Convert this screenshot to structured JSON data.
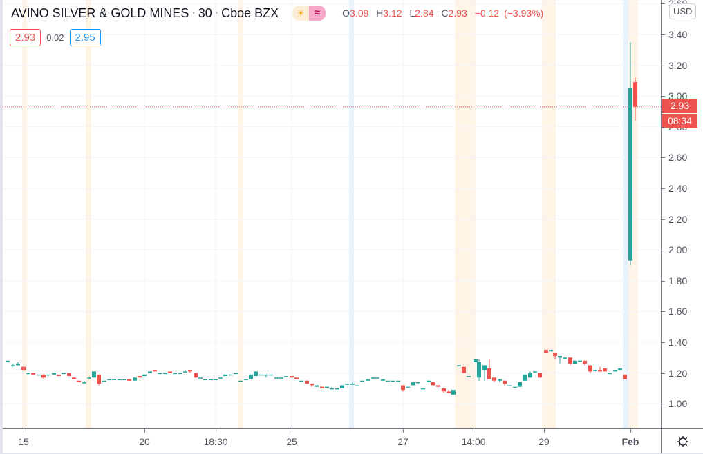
{
  "header": {
    "symbol_name": "AVINO SILVER & GOLD MINES",
    "interval": "30",
    "exchange": "Cboe BZX",
    "session_icons": [
      "sun-icon",
      "wave-icon"
    ],
    "ohlc": {
      "open_label": "O",
      "open": "3.09",
      "high_label": "H",
      "high": "3.12",
      "low_label": "L",
      "low": "2.84",
      "close_label": "C",
      "close": "2.93",
      "change": "−0.12",
      "change_pct": "(−3.93%)"
    },
    "bid": "2.93",
    "spread": "0.02",
    "ask": "2.95"
  },
  "price_axis": {
    "currency": "USD",
    "ticks": [
      "3.60",
      "3.40",
      "3.20",
      "3.00",
      "2.80",
      "2.60",
      "2.40",
      "2.20",
      "2.00",
      "1.80",
      "1.60",
      "1.40",
      "1.20",
      "1.00"
    ],
    "last_price_label": "2.93",
    "countdown_label": "08:34"
  },
  "time_axis": {
    "ticks": [
      {
        "label": "15",
        "x": 30,
        "bold": false
      },
      {
        "label": "20",
        "x": 205,
        "bold": false
      },
      {
        "label": "18:30",
        "x": 308,
        "bold": false
      },
      {
        "label": "25",
        "x": 418,
        "bold": false
      },
      {
        "label": "27",
        "x": 579,
        "bold": false
      },
      {
        "label": "14:00",
        "x": 681,
        "bold": false
      },
      {
        "label": "29",
        "x": 783,
        "bold": false
      },
      {
        "label": "Feb",
        "x": 908,
        "bold": true
      }
    ],
    "settings_icon": "gear-icon"
  },
  "colors": {
    "up": "#26a69a",
    "down": "#ef5350",
    "premarket_band": "#fff4e5",
    "postmarket_band": "#e8f2fd",
    "grid": "#f0f3fa"
  },
  "chart_data": {
    "type": "candlestick",
    "title": "AVINO SILVER & GOLD MINES · 30 · Cboe BZX",
    "xlabel": "",
    "ylabel": "USD",
    "ylim": [
      0.86,
      3.6
    ],
    "grid": true,
    "x_ticks": [
      "15",
      "20",
      "18:30",
      "25",
      "27",
      "14:00",
      "29",
      "Feb"
    ],
    "y_ticks": [
      1.0,
      1.2,
      1.4,
      1.6,
      1.8,
      2.0,
      2.2,
      2.4,
      2.6,
      2.8,
      3.0,
      3.2,
      3.4,
      3.6
    ],
    "last_price": 2.93,
    "last_candle": {
      "open": 3.09,
      "high": 3.12,
      "low": 2.84,
      "close": 2.93,
      "change": -0.12,
      "change_pct": -3.93
    },
    "candles": [
      {
        "x": 7,
        "o": 1.27,
        "h": 1.28,
        "l": 1.27,
        "c": 1.28
      },
      {
        "x": 15,
        "o": 1.25,
        "h": 1.26,
        "l": 1.24,
        "c": 1.25
      },
      {
        "x": 22,
        "o": 1.25,
        "h": 1.27,
        "l": 1.25,
        "c": 1.26
      },
      {
        "x": 30,
        "o": 1.24,
        "h": 1.24,
        "l": 1.22,
        "c": 1.22
      },
      {
        "x": 37,
        "o": 1.2,
        "h": 1.2,
        "l": 1.2,
        "c": 1.2
      },
      {
        "x": 44,
        "o": 1.2,
        "h": 1.2,
        "l": 1.19,
        "c": 1.19
      },
      {
        "x": 52,
        "o": 1.19,
        "h": 1.19,
        "l": 1.19,
        "c": 1.19
      },
      {
        "x": 59,
        "o": 1.19,
        "h": 1.19,
        "l": 1.16,
        "c": 1.17
      },
      {
        "x": 66,
        "o": 1.19,
        "h": 1.19,
        "l": 1.19,
        "c": 1.19
      },
      {
        "x": 74,
        "o": 1.19,
        "h": 1.2,
        "l": 1.19,
        "c": 1.2
      },
      {
        "x": 81,
        "o": 1.19,
        "h": 1.19,
        "l": 1.18,
        "c": 1.18
      },
      {
        "x": 88,
        "o": 1.2,
        "h": 1.2,
        "l": 1.2,
        "c": 1.2
      },
      {
        "x": 96,
        "o": 1.2,
        "h": 1.2,
        "l": 1.18,
        "c": 1.18
      },
      {
        "x": 103,
        "o": 1.17,
        "h": 1.17,
        "l": 1.16,
        "c": 1.16
      },
      {
        "x": 110,
        "o": 1.15,
        "h": 1.15,
        "l": 1.14,
        "c": 1.14
      },
      {
        "x": 118,
        "o": 1.14,
        "h": 1.15,
        "l": 1.13,
        "c": 1.14
      },
      {
        "x": 125,
        "o": 1.17,
        "h": 1.17,
        "l": 1.17,
        "c": 1.17
      },
      {
        "x": 132,
        "o": 1.17,
        "h": 1.21,
        "l": 1.17,
        "c": 1.21
      },
      {
        "x": 139,
        "o": 1.19,
        "h": 1.19,
        "l": 1.12,
        "c": 1.13
      },
      {
        "x": 147,
        "o": 1.15,
        "h": 1.15,
        "l": 1.15,
        "c": 1.15
      },
      {
        "x": 154,
        "o": 1.16,
        "h": 1.16,
        "l": 1.16,
        "c": 1.16
      },
      {
        "x": 161,
        "o": 1.16,
        "h": 1.16,
        "l": 1.16,
        "c": 1.16
      },
      {
        "x": 169,
        "o": 1.16,
        "h": 1.16,
        "l": 1.16,
        "c": 1.16
      },
      {
        "x": 176,
        "o": 1.16,
        "h": 1.16,
        "l": 1.16,
        "c": 1.16
      },
      {
        "x": 183,
        "o": 1.16,
        "h": 1.16,
        "l": 1.15,
        "c": 1.15
      },
      {
        "x": 191,
        "o": 1.15,
        "h": 1.17,
        "l": 1.15,
        "c": 1.17
      },
      {
        "x": 198,
        "o": 1.18,
        "h": 1.18,
        "l": 1.17,
        "c": 1.17
      },
      {
        "x": 205,
        "o": 1.18,
        "h": 1.19,
        "l": 1.18,
        "c": 1.19
      },
      {
        "x": 213,
        "o": 1.2,
        "h": 1.21,
        "l": 1.2,
        "c": 1.21
      },
      {
        "x": 220,
        "o": 1.22,
        "h": 1.22,
        "l": 1.21,
        "c": 1.21
      },
      {
        "x": 227,
        "o": 1.2,
        "h": 1.2,
        "l": 1.2,
        "c": 1.2
      },
      {
        "x": 235,
        "o": 1.2,
        "h": 1.2,
        "l": 1.2,
        "c": 1.2
      },
      {
        "x": 242,
        "o": 1.21,
        "h": 1.21,
        "l": 1.2,
        "c": 1.2
      },
      {
        "x": 249,
        "o": 1.2,
        "h": 1.2,
        "l": 1.2,
        "c": 1.2
      },
      {
        "x": 257,
        "o": 1.2,
        "h": 1.2,
        "l": 1.2,
        "c": 1.2
      },
      {
        "x": 264,
        "o": 1.21,
        "h": 1.22,
        "l": 1.21,
        "c": 1.21
      },
      {
        "x": 271,
        "o": 1.22,
        "h": 1.22,
        "l": 1.2,
        "c": 1.21
      },
      {
        "x": 279,
        "o": 1.2,
        "h": 1.2,
        "l": 1.17,
        "c": 1.17
      },
      {
        "x": 286,
        "o": 1.17,
        "h": 1.17,
        "l": 1.17,
        "c": 1.17
      },
      {
        "x": 293,
        "o": 1.16,
        "h": 1.16,
        "l": 1.16,
        "c": 1.16
      },
      {
        "x": 301,
        "o": 1.16,
        "h": 1.16,
        "l": 1.16,
        "c": 1.16
      },
      {
        "x": 308,
        "o": 1.16,
        "h": 1.16,
        "l": 1.16,
        "c": 1.16
      },
      {
        "x": 315,
        "o": 1.17,
        "h": 1.17,
        "l": 1.17,
        "c": 1.17
      },
      {
        "x": 322,
        "o": 1.18,
        "h": 1.19,
        "l": 1.18,
        "c": 1.19
      },
      {
        "x": 330,
        "o": 1.19,
        "h": 1.19,
        "l": 1.19,
        "c": 1.19
      },
      {
        "x": 337,
        "o": 1.2,
        "h": 1.2,
        "l": 1.2,
        "c": 1.2
      },
      {
        "x": 344,
        "o": 1.15,
        "h": 1.15,
        "l": 1.15,
        "c": 1.15
      },
      {
        "x": 352,
        "o": 1.16,
        "h": 1.16,
        "l": 1.16,
        "c": 1.16
      },
      {
        "x": 359,
        "o": 1.16,
        "h": 1.19,
        "l": 1.16,
        "c": 1.19
      },
      {
        "x": 366,
        "o": 1.18,
        "h": 1.21,
        "l": 1.18,
        "c": 1.21
      },
      {
        "x": 374,
        "o": 1.19,
        "h": 1.19,
        "l": 1.19,
        "c": 1.19
      },
      {
        "x": 381,
        "o": 1.19,
        "h": 1.19,
        "l": 1.17,
        "c": 1.19
      },
      {
        "x": 388,
        "o": 1.19,
        "h": 1.19,
        "l": 1.19,
        "c": 1.19
      },
      {
        "x": 396,
        "o": 1.17,
        "h": 1.17,
        "l": 1.17,
        "c": 1.17
      },
      {
        "x": 403,
        "o": 1.17,
        "h": 1.17,
        "l": 1.17,
        "c": 1.17
      },
      {
        "x": 410,
        "o": 1.18,
        "h": 1.18,
        "l": 1.18,
        "c": 1.18
      },
      {
        "x": 418,
        "o": 1.18,
        "h": 1.18,
        "l": 1.17,
        "c": 1.17
      },
      {
        "x": 425,
        "o": 1.17,
        "h": 1.17,
        "l": 1.16,
        "c": 1.16
      },
      {
        "x": 432,
        "o": 1.15,
        "h": 1.15,
        "l": 1.15,
        "c": 1.15
      },
      {
        "x": 440,
        "o": 1.15,
        "h": 1.15,
        "l": 1.13,
        "c": 1.13
      },
      {
        "x": 447,
        "o": 1.13,
        "h": 1.13,
        "l": 1.11,
        "c": 1.12
      },
      {
        "x": 454,
        "o": 1.11,
        "h": 1.12,
        "l": 1.11,
        "c": 1.12
      },
      {
        "x": 462,
        "o": 1.11,
        "h": 1.11,
        "l": 1.1,
        "c": 1.1
      },
      {
        "x": 469,
        "o": 1.11,
        "h": 1.11,
        "l": 1.11,
        "c": 1.11
      },
      {
        "x": 476,
        "o": 1.1,
        "h": 1.11,
        "l": 1.1,
        "c": 1.1
      },
      {
        "x": 484,
        "o": 1.1,
        "h": 1.1,
        "l": 1.1,
        "c": 1.1
      },
      {
        "x": 491,
        "o": 1.1,
        "h": 1.12,
        "l": 1.1,
        "c": 1.12
      },
      {
        "x": 498,
        "o": 1.13,
        "h": 1.13,
        "l": 1.13,
        "c": 1.13
      },
      {
        "x": 506,
        "o": 1.13,
        "h": 1.14,
        "l": 1.13,
        "c": 1.13
      },
      {
        "x": 513,
        "o": 1.12,
        "h": 1.12,
        "l": 1.12,
        "c": 1.12
      },
      {
        "x": 520,
        "o": 1.15,
        "h": 1.15,
        "l": 1.15,
        "c": 1.15
      },
      {
        "x": 528,
        "o": 1.15,
        "h": 1.16,
        "l": 1.15,
        "c": 1.16
      },
      {
        "x": 535,
        "o": 1.17,
        "h": 1.17,
        "l": 1.17,
        "c": 1.17
      },
      {
        "x": 542,
        "o": 1.17,
        "h": 1.17,
        "l": 1.17,
        "c": 1.17
      },
      {
        "x": 550,
        "o": 1.15,
        "h": 1.16,
        "l": 1.15,
        "c": 1.16
      },
      {
        "x": 557,
        "o": 1.15,
        "h": 1.15,
        "l": 1.15,
        "c": 1.15
      },
      {
        "x": 564,
        "o": 1.15,
        "h": 1.15,
        "l": 1.15,
        "c": 1.15
      },
      {
        "x": 572,
        "o": 1.15,
        "h": 1.15,
        "l": 1.15,
        "c": 1.15
      },
      {
        "x": 579,
        "o": 1.12,
        "h": 1.12,
        "l": 1.08,
        "c": 1.09
      },
      {
        "x": 586,
        "o": 1.11,
        "h": 1.11,
        "l": 1.11,
        "c": 1.11
      },
      {
        "x": 594,
        "o": 1.12,
        "h": 1.14,
        "l": 1.12,
        "c": 1.14
      },
      {
        "x": 601,
        "o": 1.14,
        "h": 1.14,
        "l": 1.14,
        "c": 1.14
      },
      {
        "x": 608,
        "o": 1.1,
        "h": 1.1,
        "l": 1.1,
        "c": 1.1
      },
      {
        "x": 616,
        "o": 1.14,
        "h": 1.15,
        "l": 1.14,
        "c": 1.15
      },
      {
        "x": 623,
        "o": 1.14,
        "h": 1.14,
        "l": 1.12,
        "c": 1.12
      },
      {
        "x": 630,
        "o": 1.12,
        "h": 1.12,
        "l": 1.11,
        "c": 1.11
      },
      {
        "x": 638,
        "o": 1.1,
        "h": 1.1,
        "l": 1.07,
        "c": 1.08
      },
      {
        "x": 645,
        "o": 1.08,
        "h": 1.09,
        "l": 1.07,
        "c": 1.07
      },
      {
        "x": 652,
        "o": 1.06,
        "h": 1.09,
        "l": 1.06,
        "c": 1.09
      },
      {
        "x": 660,
        "o": 1.25,
        "h": 1.25,
        "l": 1.25,
        "c": 1.25
      },
      {
        "x": 667,
        "o": 1.24,
        "h": 1.24,
        "l": 1.2,
        "c": 1.2
      },
      {
        "x": 674,
        "o": 1.18,
        "h": 1.18,
        "l": 1.18,
        "c": 1.18
      },
      {
        "x": 684,
        "o": 1.27,
        "h": 1.29,
        "l": 1.27,
        "c": 1.29
      },
      {
        "x": 689,
        "o": 1.17,
        "h": 1.29,
        "l": 1.15,
        "c": 1.27
      },
      {
        "x": 697,
        "o": 1.22,
        "h": 1.25,
        "l": 1.15,
        "c": 1.25
      },
      {
        "x": 704,
        "o": 1.23,
        "h": 1.29,
        "l": 1.16,
        "c": 1.16
      },
      {
        "x": 711,
        "o": 1.17,
        "h": 1.17,
        "l": 1.14,
        "c": 1.15
      },
      {
        "x": 719,
        "o": 1.15,
        "h": 1.16,
        "l": 1.14,
        "c": 1.16
      },
      {
        "x": 726,
        "o": 1.15,
        "h": 1.15,
        "l": 1.12,
        "c": 1.13
      },
      {
        "x": 733,
        "o": 1.12,
        "h": 1.12,
        "l": 1.12,
        "c": 1.12
      },
      {
        "x": 741,
        "o": 1.11,
        "h": 1.11,
        "l": 1.11,
        "c": 1.11
      },
      {
        "x": 748,
        "o": 1.11,
        "h": 1.14,
        "l": 1.11,
        "c": 1.14
      },
      {
        "x": 755,
        "o": 1.15,
        "h": 1.19,
        "l": 1.15,
        "c": 1.19
      },
      {
        "x": 763,
        "o": 1.17,
        "h": 1.21,
        "l": 1.17,
        "c": 1.2
      },
      {
        "x": 770,
        "o": 1.21,
        "h": 1.21,
        "l": 1.21,
        "c": 1.21
      },
      {
        "x": 777,
        "o": 1.2,
        "h": 1.2,
        "l": 1.17,
        "c": 1.17
      },
      {
        "x": 786,
        "o": 1.35,
        "h": 1.35,
        "l": 1.33,
        "c": 1.33
      },
      {
        "x": 793,
        "o": 1.34,
        "h": 1.35,
        "l": 1.34,
        "c": 1.35
      },
      {
        "x": 799,
        "o": 1.33,
        "h": 1.33,
        "l": 1.29,
        "c": 1.31
      },
      {
        "x": 806,
        "o": 1.3,
        "h": 1.31,
        "l": 1.26,
        "c": 1.31
      },
      {
        "x": 813,
        "o": 1.3,
        "h": 1.3,
        "l": 1.29,
        "c": 1.3
      },
      {
        "x": 821,
        "o": 1.3,
        "h": 1.3,
        "l": 1.25,
        "c": 1.26
      },
      {
        "x": 828,
        "o": 1.26,
        "h": 1.28,
        "l": 1.26,
        "c": 1.28
      },
      {
        "x": 835,
        "o": 1.28,
        "h": 1.28,
        "l": 1.27,
        "c": 1.28
      },
      {
        "x": 842,
        "o": 1.28,
        "h": 1.28,
        "l": 1.25,
        "c": 1.26
      },
      {
        "x": 850,
        "o": 1.25,
        "h": 1.25,
        "l": 1.2,
        "c": 1.21
      },
      {
        "x": 857,
        "o": 1.22,
        "h": 1.22,
        "l": 1.21,
        "c": 1.22
      },
      {
        "x": 864,
        "o": 1.22,
        "h": 1.24,
        "l": 1.21,
        "c": 1.21
      },
      {
        "x": 871,
        "o": 1.23,
        "h": 1.23,
        "l": 1.21,
        "c": 1.21
      },
      {
        "x": 878,
        "o": 1.2,
        "h": 1.2,
        "l": 1.2,
        "c": 1.2
      },
      {
        "x": 886,
        "o": 1.21,
        "h": 1.22,
        "l": 1.21,
        "c": 1.22
      },
      {
        "x": 893,
        "o": 1.22,
        "h": 1.23,
        "l": 1.22,
        "c": 1.23
      },
      {
        "x": 900,
        "o": 1.19,
        "h": 1.19,
        "l": 1.16,
        "c": 1.16
      },
      {
        "x": 908,
        "o": 1.93,
        "h": 3.35,
        "l": 1.9,
        "c": 3.05
      },
      {
        "x": 915,
        "o": 3.09,
        "h": 3.12,
        "l": 2.84,
        "c": 2.93
      }
    ],
    "session_bands": [
      {
        "x": 28,
        "w": 7,
        "type": "pre"
      },
      {
        "x": 120,
        "w": 8,
        "type": "pre"
      },
      {
        "x": 340,
        "w": 8,
        "type": "pre"
      },
      {
        "x": 501,
        "w": 7,
        "type": "post"
      },
      {
        "x": 654,
        "w": 30,
        "type": "pre"
      },
      {
        "x": 780,
        "w": 20,
        "type": "pre"
      },
      {
        "x": 897,
        "w": 8,
        "type": "post"
      },
      {
        "x": 905,
        "w": 14,
        "type": "pre"
      }
    ]
  }
}
